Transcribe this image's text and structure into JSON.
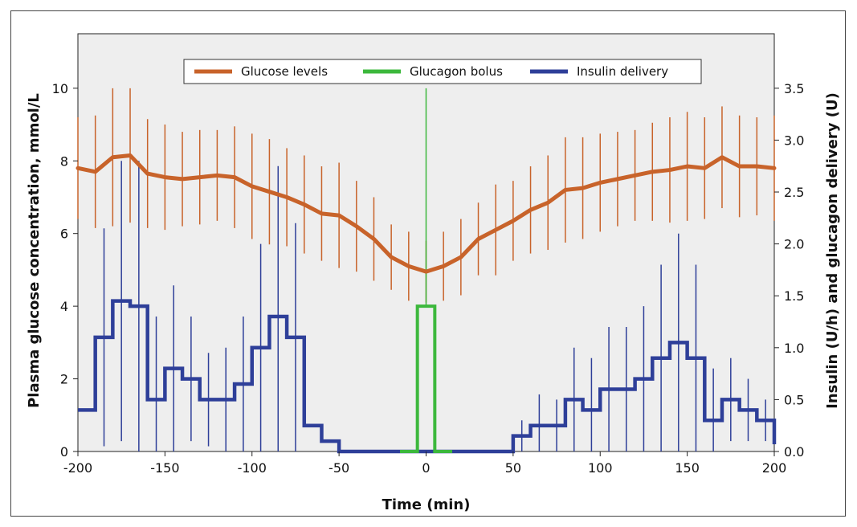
{
  "chart_data": {
    "type": "line",
    "xlabel": "Time (min)",
    "ylabel": "Plasma glucose concentration, mmol/L",
    "y2label": "Insulin (U/h) and glucagon delivery (U)",
    "xlim": [
      -200,
      200
    ],
    "ylim": [
      0,
      11.5
    ],
    "y2lim": [
      0,
      4.025
    ],
    "x_ticks": [
      "-200",
      "-150",
      "-100",
      "-50",
      "0",
      "50",
      "100",
      "150",
      "200"
    ],
    "y_ticks": [
      "0",
      "2",
      "4",
      "6",
      "8",
      "10"
    ],
    "y2_ticks": [
      "0.0",
      "0.5",
      "1.0",
      "1.5",
      "2.0",
      "2.5",
      "3.0",
      "3.5"
    ],
    "grid": false,
    "legend_position": "top-center",
    "colors": {
      "glucose": "#c8632a",
      "glucagon": "#3cb83c",
      "insulin": "#2e3f99",
      "plot_bg": "#eeeeee"
    },
    "series": [
      {
        "name": "Glucose levels",
        "axis": "left",
        "x": [
          -200,
          -190,
          -180,
          -170,
          -160,
          -150,
          -140,
          -130,
          -120,
          -110,
          -100,
          -90,
          -80,
          -70,
          -60,
          -50,
          -40,
          -30,
          -20,
          -10,
          0,
          10,
          20,
          30,
          40,
          50,
          60,
          70,
          80,
          90,
          100,
          110,
          120,
          130,
          140,
          150,
          160,
          170,
          180,
          190,
          200
        ],
        "values": [
          7.8,
          7.7,
          8.1,
          8.15,
          7.65,
          7.55,
          7.5,
          7.55,
          7.6,
          7.55,
          7.3,
          7.15,
          7.0,
          6.8,
          6.55,
          6.5,
          6.2,
          5.85,
          5.35,
          5.1,
          4.95,
          5.1,
          5.35,
          5.85,
          6.1,
          6.35,
          6.65,
          6.85,
          7.2,
          7.25,
          7.4,
          7.5,
          7.6,
          7.7,
          7.75,
          7.85,
          7.8,
          8.1,
          7.85,
          7.85,
          7.8
        ],
        "error": [
          1.4,
          1.55,
          1.9,
          1.85,
          1.5,
          1.45,
          1.3,
          1.3,
          1.25,
          1.4,
          1.45,
          1.45,
          1.35,
          1.35,
          1.3,
          1.45,
          1.25,
          1.15,
          0.9,
          0.95,
          0.85,
          0.95,
          1.05,
          1.0,
          1.25,
          1.1,
          1.2,
          1.3,
          1.45,
          1.4,
          1.35,
          1.3,
          1.25,
          1.35,
          1.45,
          1.5,
          1.4,
          1.4,
          1.4,
          1.35,
          1.45
        ]
      },
      {
        "name": "Glucagon bolus",
        "axis": "right",
        "x": [
          -5,
          5
        ],
        "values": [
          1.4,
          1.4
        ],
        "error_high": 3.5
      },
      {
        "name": "Insulin delivery",
        "axis": "right",
        "x": [
          -200,
          -190,
          -180,
          -170,
          -160,
          -150,
          -140,
          -130,
          -120,
          -110,
          -100,
          -90,
          -80,
          -70,
          -60,
          -50,
          -40,
          -30,
          -20,
          -10,
          0,
          10,
          20,
          30,
          40,
          50,
          60,
          70,
          80,
          90,
          100,
          110,
          120,
          130,
          140,
          150,
          160,
          170,
          180,
          190
        ],
        "values": [
          0.4,
          1.1,
          1.45,
          1.4,
          0.5,
          0.8,
          0.7,
          0.5,
          0.5,
          0.65,
          1.0,
          1.3,
          1.1,
          0.25,
          0.1,
          0.0,
          0.0,
          0.0,
          0.0,
          0.0,
          0.0,
          0.0,
          0.0,
          0.0,
          0.0,
          0.15,
          0.25,
          0.25,
          0.5,
          0.4,
          0.6,
          0.6,
          0.7,
          0.9,
          1.05,
          0.9,
          0.3,
          0.5,
          0.4,
          0.3
        ],
        "error": [
          0.0,
          1.05,
          1.35,
          1.4,
          0.8,
          0.8,
          0.6,
          0.45,
          0.5,
          0.65,
          1.0,
          1.45,
          1.1,
          0.0,
          0.0,
          0.0,
          0.0,
          0.0,
          0.0,
          0.0,
          0.0,
          0.0,
          0.0,
          0.0,
          0.0,
          0.15,
          0.3,
          0.25,
          0.5,
          0.5,
          0.6,
          0.6,
          0.7,
          0.9,
          1.05,
          0.9,
          0.5,
          0.4,
          0.3,
          0.2
        ]
      }
    ]
  }
}
